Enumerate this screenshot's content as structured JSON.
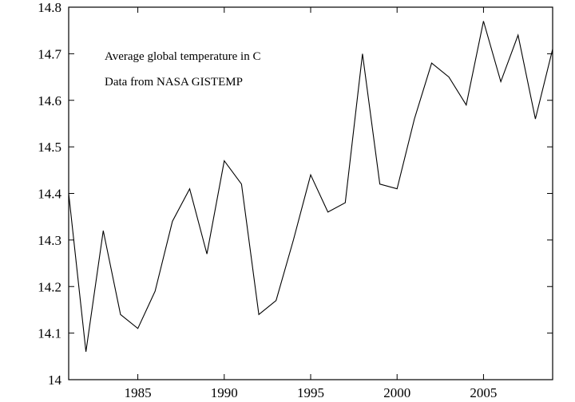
{
  "chart_data": {
    "type": "line",
    "title": "",
    "xlabel": "",
    "ylabel": "",
    "xlim": [
      1981,
      2009
    ],
    "ylim": [
      14.0,
      14.8
    ],
    "xticks": [
      1985,
      1990,
      1995,
      2000,
      2005
    ],
    "xtick_labels": [
      "1985",
      "1990",
      "1995",
      "2000",
      "2005"
    ],
    "yticks": [
      14.0,
      14.1,
      14.2,
      14.3,
      14.4,
      14.5,
      14.6,
      14.7,
      14.8
    ],
    "ytick_labels": [
      "14",
      "14.1",
      "14.2",
      "14.3",
      "14.4",
      "14.5",
      "14.6",
      "14.7",
      "14.8"
    ],
    "grid": false,
    "annotations": [
      "Average global temperature in C",
      "Data from NASA GISTEMP"
    ],
    "series": [
      {
        "name": "Average global temperature",
        "color": "#000000",
        "x": [
          1981,
          1982,
          1983,
          1984,
          1985,
          1986,
          1987,
          1988,
          1989,
          1990,
          1991,
          1992,
          1993,
          1994,
          1995,
          1996,
          1997,
          1998,
          1999,
          2000,
          2001,
          2002,
          2003,
          2004,
          2005,
          2006,
          2007,
          2008,
          2009
        ],
        "y": [
          14.4,
          14.06,
          14.32,
          14.14,
          14.11,
          14.19,
          14.34,
          14.41,
          14.27,
          14.47,
          14.42,
          14.14,
          14.17,
          14.3,
          14.44,
          14.36,
          14.38,
          14.7,
          14.42,
          14.41,
          14.56,
          14.68,
          14.65,
          14.59,
          14.77,
          14.64,
          14.74,
          14.56,
          14.71
        ]
      }
    ]
  }
}
